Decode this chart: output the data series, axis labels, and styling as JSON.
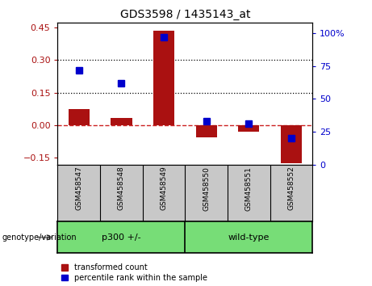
{
  "title": "GDS3598 / 1435143_at",
  "samples": [
    "GSM458547",
    "GSM458548",
    "GSM458549",
    "GSM458550",
    "GSM458551",
    "GSM458552"
  ],
  "red_values": [
    0.075,
    0.035,
    0.435,
    -0.055,
    -0.03,
    -0.175
  ],
  "blue_values": [
    72,
    62,
    97,
    33,
    31,
    20
  ],
  "group_boundary": 3,
  "ylim_left": [
    -0.18,
    0.47
  ],
  "ylim_right": [
    0,
    108
  ],
  "yticks_left": [
    -0.15,
    0.0,
    0.15,
    0.3,
    0.45
  ],
  "yticks_right": [
    0,
    25,
    50,
    75,
    100
  ],
  "hlines": [
    0.15,
    0.3
  ],
  "red_color": "#AA1111",
  "blue_color": "#0000CC",
  "bar_width": 0.5,
  "blue_marker_size": 6,
  "zero_line_color": "#CC2222",
  "bg_color_plot": "white",
  "bg_color_labels": "#C8C8C8",
  "bg_color_groups": "#77DD77",
  "legend_red": "transformed count",
  "legend_blue": "percentile rank within the sample",
  "genotype_label": "genotype/variation"
}
